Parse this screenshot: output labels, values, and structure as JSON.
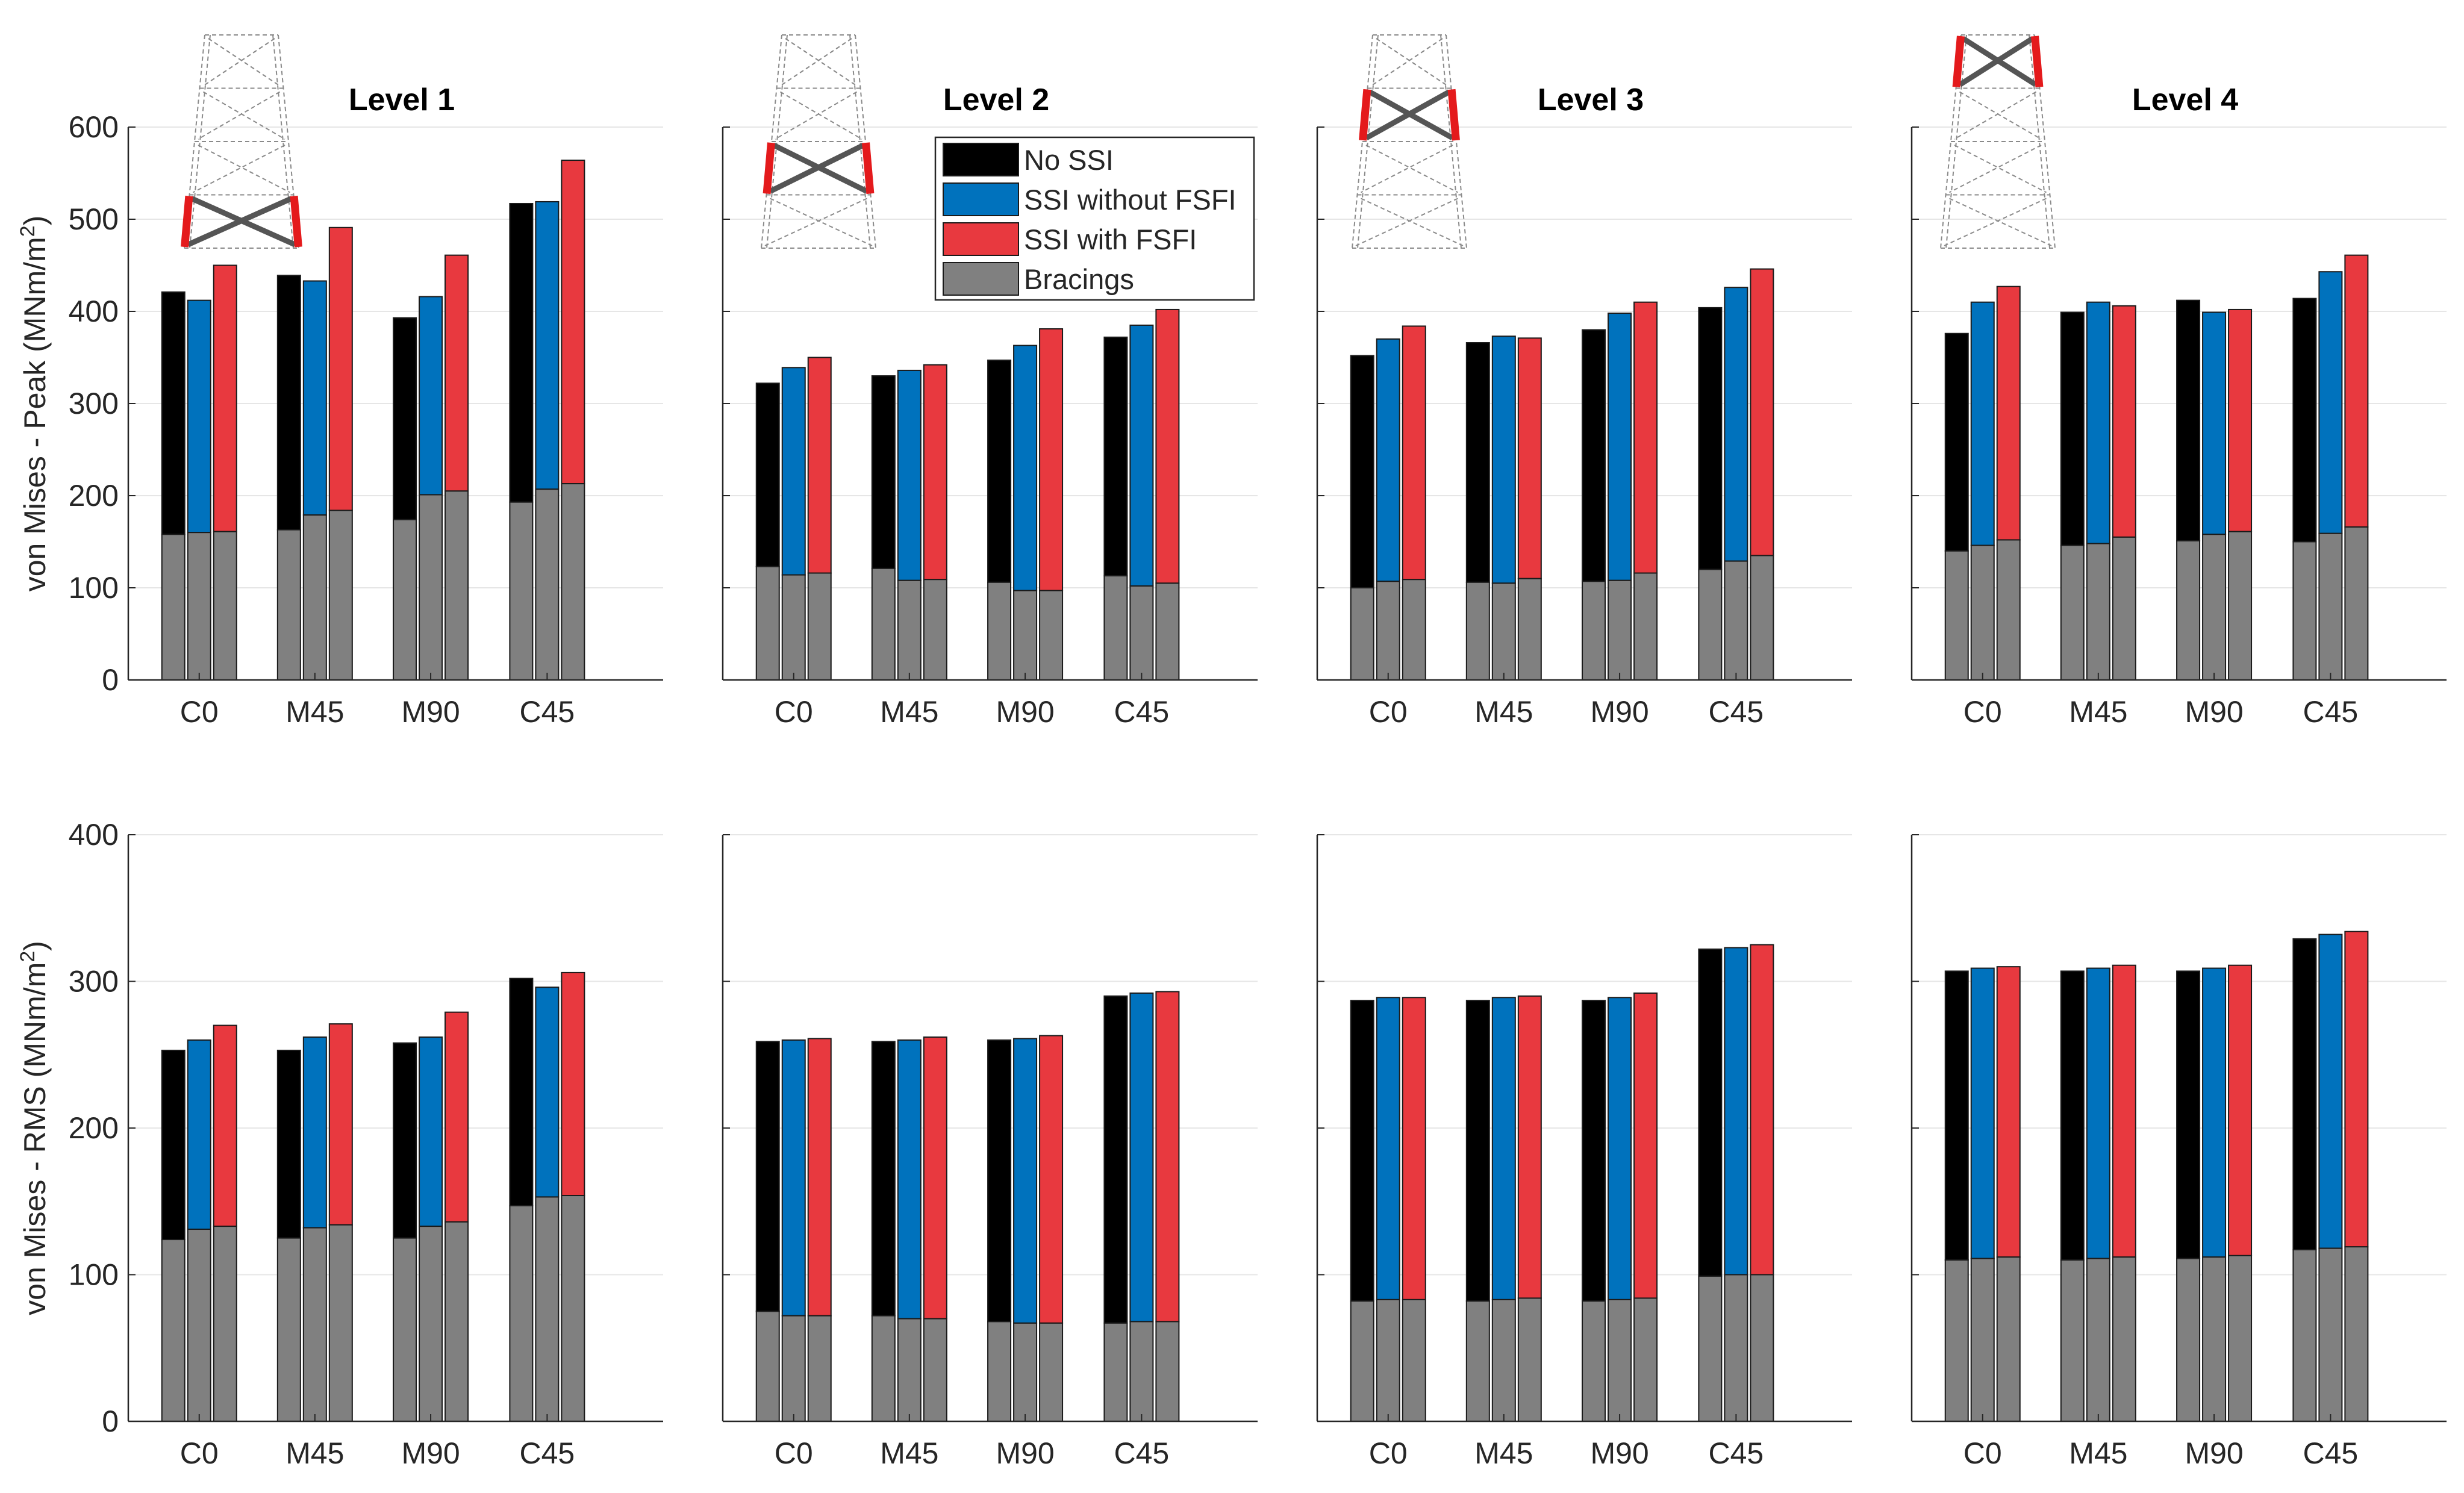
{
  "figure": {
    "panel_titles": [
      "Level 1",
      "Level 2",
      "Level 3",
      "Level 4"
    ],
    "categories": [
      "C0",
      "M45",
      "M90",
      "C45"
    ],
    "series_names": [
      "No SSI",
      "SSI without FSFI",
      "SSI with FSFI"
    ],
    "component_name": "Bracings",
    "colors": {
      "No SSI": "#000000",
      "SSI without FSFI": "#0072BD",
      "SSI with FSFI": "#E8393F",
      "Bracings": "#808080",
      "grid": "#e6e6e6",
      "jacket_highlight": "#E41A1C",
      "jacket_brace": "#555555",
      "jacket_dash": "#8a8a8a"
    },
    "rows": {
      "peak": {
        "ylabel": "von Mises - Peak (MNm/m",
        "ylabel_sup": "2",
        "ylabel_end": ")",
        "ylim": [
          0,
          600
        ],
        "yticks": [
          0,
          100,
          200,
          300,
          400,
          500,
          600
        ]
      },
      "rms": {
        "ylabel": "von Mises - RMS (MNm/m",
        "ylabel_sup": "2",
        "ylabel_end": ")",
        "ylim": [
          0,
          400
        ],
        "yticks": [
          0,
          100,
          200,
          300,
          400
        ]
      }
    }
  },
  "chart_data": [
    {
      "type": "bar",
      "title": "Level 1",
      "ylabel": "von Mises - Peak (MNm/m2)",
      "ylim": [
        0,
        600
      ],
      "categories": [
        "C0",
        "M45",
        "M90",
        "C45"
      ],
      "series": [
        {
          "name": "No SSI",
          "values": [
            421,
            439,
            393,
            517
          ],
          "bracings": [
            158,
            163,
            174,
            193
          ]
        },
        {
          "name": "SSI without FSFI",
          "values": [
            412,
            433,
            416,
            519
          ],
          "bracings": [
            160,
            179,
            201,
            207
          ]
        },
        {
          "name": "SSI with FSFI",
          "values": [
            450,
            491,
            461,
            564
          ],
          "bracings": [
            161,
            184,
            205,
            213
          ]
        }
      ]
    },
    {
      "type": "bar",
      "title": "Level 2",
      "ylim": [
        0,
        600
      ],
      "categories": [
        "C0",
        "M45",
        "M90",
        "C45"
      ],
      "series": [
        {
          "name": "No SSI",
          "values": [
            322,
            330,
            347,
            372
          ],
          "bracings": [
            123,
            121,
            106,
            113
          ]
        },
        {
          "name": "SSI without FSFI",
          "values": [
            339,
            336,
            363,
            385
          ],
          "bracings": [
            114,
            108,
            97,
            102
          ]
        },
        {
          "name": "SSI with FSFI",
          "values": [
            350,
            342,
            381,
            402
          ],
          "bracings": [
            116,
            109,
            97,
            105
          ]
        }
      ]
    },
    {
      "type": "bar",
      "title": "Level 3",
      "ylim": [
        0,
        600
      ],
      "categories": [
        "C0",
        "M45",
        "M90",
        "C45"
      ],
      "series": [
        {
          "name": "No SSI",
          "values": [
            352,
            366,
            380,
            404
          ],
          "bracings": [
            100,
            106,
            107,
            120
          ]
        },
        {
          "name": "SSI without FSFI",
          "values": [
            370,
            373,
            398,
            426
          ],
          "bracings": [
            107,
            105,
            108,
            129
          ]
        },
        {
          "name": "SSI with FSFI",
          "values": [
            384,
            371,
            410,
            446
          ],
          "bracings": [
            109,
            110,
            116,
            135
          ]
        }
      ]
    },
    {
      "type": "bar",
      "title": "Level 4",
      "ylim": [
        0,
        600
      ],
      "categories": [
        "C0",
        "M45",
        "M90",
        "C45"
      ],
      "series": [
        {
          "name": "No SSI",
          "values": [
            376,
            399,
            412,
            414
          ],
          "bracings": [
            140,
            146,
            151,
            150
          ]
        },
        {
          "name": "SSI without FSFI",
          "values": [
            410,
            410,
            399,
            443
          ],
          "bracings": [
            146,
            148,
            158,
            159
          ]
        },
        {
          "name": "SSI with FSFI",
          "values": [
            427,
            406,
            402,
            461
          ],
          "bracings": [
            152,
            155,
            161,
            166
          ]
        }
      ]
    },
    {
      "type": "bar",
      "ylabel": "von Mises - RMS (MNm/m2)",
      "ylim": [
        0,
        400
      ],
      "categories": [
        "C0",
        "M45",
        "M90",
        "C45"
      ],
      "series": [
        {
          "name": "No SSI",
          "values": [
            253,
            253,
            258,
            302
          ],
          "bracings": [
            124,
            125,
            125,
            147
          ]
        },
        {
          "name": "SSI without FSFI",
          "values": [
            260,
            262,
            262,
            296
          ],
          "bracings": [
            131,
            132,
            133,
            153
          ]
        },
        {
          "name": "SSI with FSFI",
          "values": [
            270,
            271,
            279,
            306
          ],
          "bracings": [
            133,
            134,
            136,
            154
          ]
        }
      ]
    },
    {
      "type": "bar",
      "ylim": [
        0,
        400
      ],
      "categories": [
        "C0",
        "M45",
        "M90",
        "C45"
      ],
      "series": [
        {
          "name": "No SSI",
          "values": [
            259,
            259,
            260,
            290
          ],
          "bracings": [
            75,
            72,
            68,
            67
          ]
        },
        {
          "name": "SSI without FSFI",
          "values": [
            260,
            260,
            261,
            292
          ],
          "bracings": [
            72,
            70,
            67,
            68
          ]
        },
        {
          "name": "SSI with FSFI",
          "values": [
            261,
            262,
            263,
            293
          ],
          "bracings": [
            72,
            70,
            67,
            68
          ]
        }
      ]
    },
    {
      "type": "bar",
      "ylim": [
        0,
        400
      ],
      "categories": [
        "C0",
        "M45",
        "M90",
        "C45"
      ],
      "series": [
        {
          "name": "No SSI",
          "values": [
            287,
            287,
            287,
            322
          ],
          "bracings": [
            82,
            82,
            82,
            99
          ]
        },
        {
          "name": "SSI without FSFI",
          "values": [
            289,
            289,
            289,
            323
          ],
          "bracings": [
            83,
            83,
            83,
            100
          ]
        },
        {
          "name": "SSI with FSFI",
          "values": [
            289,
            290,
            292,
            325
          ],
          "bracings": [
            83,
            84,
            84,
            100
          ]
        }
      ]
    },
    {
      "type": "bar",
      "ylim": [
        0,
        400
      ],
      "categories": [
        "C0",
        "M45",
        "M90",
        "C45"
      ],
      "series": [
        {
          "name": "No SSI",
          "values": [
            307,
            307,
            307,
            329
          ],
          "bracings": [
            110,
            110,
            111,
            117
          ]
        },
        {
          "name": "SSI without FSFI",
          "values": [
            309,
            309,
            309,
            332
          ],
          "bracings": [
            111,
            111,
            112,
            118
          ]
        },
        {
          "name": "SSI with FSFI",
          "values": [
            310,
            311,
            311,
            334
          ],
          "bracings": [
            112,
            112,
            113,
            119
          ]
        }
      ]
    }
  ]
}
